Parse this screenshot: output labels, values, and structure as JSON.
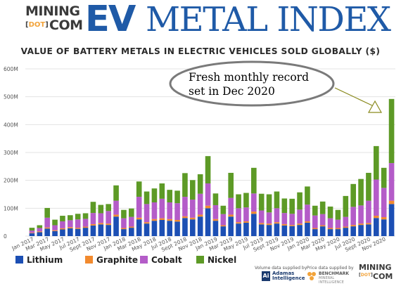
{
  "logo": {
    "mining": "MINING",
    "dot": "DOT",
    "com": "COM",
    "ev": "EV",
    "metal_index": "METAL INDEX",
    "primary_color": "#1f5aa7"
  },
  "title": "VALUE OF BATTERY METALS IN ELECTRIC VEHICLES SOLD GLOBALLY ($)",
  "callout": {
    "line1": "Fresh monthly record",
    "line2": "set in Dec 2020"
  },
  "legend": [
    {
      "name": "Lithium",
      "color": "#1c4fb4"
    },
    {
      "name": "Graphite",
      "color": "#f28a2e"
    },
    {
      "name": "Cobalt",
      "color": "#b45cc8"
    },
    {
      "name": "Nickel",
      "color": "#5d9a26"
    }
  ],
  "suppliers": {
    "volume_note_1": "Volume data supplied by",
    "adamas_name": "Adamas",
    "adamas_name2": "Intelligence",
    "adamas_mark": "Ai",
    "price_note_1": "Price data supplied by",
    "bm_name": "BENCHMARK",
    "bm_sub": "MINERAL",
    "bm_sub2": "INTELLIGENCE",
    "footer_mining": "MINING",
    "footer_dot": "DOT",
    "footer_com": "COM"
  },
  "chart_data": {
    "type": "bar",
    "stacked": true,
    "ylim": [
      0,
      600
    ],
    "yticks": [
      0,
      100,
      200,
      300,
      400,
      500,
      600
    ],
    "ytick_labels": [
      "0",
      "100M",
      "200M",
      "300M",
      "400M",
      "500M",
      "600M"
    ],
    "grid": true,
    "x_tick_labels": [
      "Jan 2017",
      "Mar 2017",
      "May 2017",
      "Jul 2017",
      "Sept 2017",
      "Nov 2017",
      "Jan 2018",
      "Mar 2018",
      "May 2018",
      "Jul 2018",
      "Sept 2018",
      "Nov 2018",
      "Jan 2019",
      "Mar 2019",
      "May 2019",
      "Jul 2019",
      "Sept 2019",
      "Nov 2019",
      "Jan 2020",
      "Mar 2020",
      "May 2020",
      "Jul 2020",
      "Sept 2020",
      "Nov 2020"
    ],
    "categories": [
      "Jan 2017",
      "Feb 2017",
      "Mar 2017",
      "Apr 2017",
      "May 2017",
      "Jun 2017",
      "Jul 2017",
      "Aug 2017",
      "Sept 2017",
      "Oct 2017",
      "Nov 2017",
      "Dec 2017",
      "Jan 2018",
      "Feb 2018",
      "Mar 2018",
      "Apr 2018",
      "May 2018",
      "Jun 2018",
      "Jul 2018",
      "Aug 2018",
      "Sept 2018",
      "Oct 2018",
      "Nov 2018",
      "Dec 2018",
      "Jan 2019",
      "Feb 2019",
      "Mar 2019",
      "Apr 2019",
      "May 2019",
      "Jun 2019",
      "Jul 2019",
      "Aug 2019",
      "Sept 2019",
      "Oct 2019",
      "Nov 2019",
      "Dec 2019",
      "Jan 2020",
      "Feb 2020",
      "Mar 2020",
      "Apr 2020",
      "May 2020",
      "Jun 2020",
      "Jul 2020",
      "Aug 2020",
      "Sept 2020",
      "Oct 2020",
      "Nov 2020",
      "Dec 2020"
    ],
    "series": [
      {
        "name": "Lithium",
        "color": "#1c4fb4",
        "values": [
          10,
          14,
          27,
          18,
          24,
          28,
          26,
          30,
          38,
          42,
          40,
          70,
          25,
          30,
          60,
          45,
          55,
          58,
          55,
          52,
          65,
          60,
          70,
          100,
          55,
          35,
          70,
          45,
          48,
          80,
          42,
          40,
          45,
          38,
          36,
          40,
          48,
          25,
          35,
          25,
          25,
          30,
          35,
          40,
          42,
          65,
          60,
          115
        ]
      },
      {
        "name": "Graphite",
        "color": "#f28a2e",
        "values": [
          2,
          3,
          4,
          3,
          4,
          4,
          4,
          4,
          5,
          5,
          5,
          7,
          4,
          4,
          6,
          5,
          6,
          6,
          6,
          6,
          6,
          6,
          7,
          9,
          6,
          4,
          7,
          5,
          5,
          8,
          5,
          5,
          5,
          5,
          4,
          5,
          5,
          4,
          4,
          4,
          4,
          4,
          5,
          5,
          5,
          8,
          8,
          12
        ]
      },
      {
        "name": "Cobalt",
        "color": "#b45cc8",
        "values": [
          8,
          12,
          35,
          18,
          25,
          25,
          30,
          28,
          40,
          35,
          45,
          50,
          35,
          35,
          75,
          65,
          60,
          70,
          60,
          60,
          70,
          65,
          75,
          80,
          50,
          40,
          60,
          50,
          50,
          65,
          45,
          40,
          50,
          40,
          40,
          50,
          60,
          45,
          40,
          35,
          30,
          35,
          65,
          65,
          80,
          130,
          105,
          135
        ]
      },
      {
        "name": "Nickel",
        "color": "#5d9a26",
        "values": [
          10,
          10,
          35,
          20,
          20,
          18,
          20,
          20,
          40,
          30,
          25,
          55,
          30,
          30,
          55,
          45,
          50,
          55,
          45,
          45,
          85,
          70,
          70,
          98,
          42,
          30,
          90,
          50,
          52,
          92,
          60,
          65,
          60,
          52,
          54,
          62,
          65,
          35,
          45,
          42,
          35,
          75,
          82,
          95,
          100,
          120,
          72,
          230
        ]
      }
    ]
  }
}
